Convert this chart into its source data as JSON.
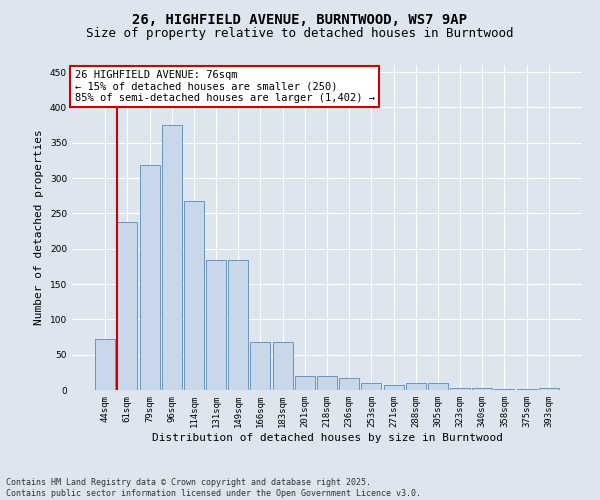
{
  "title_line1": "26, HIGHFIELD AVENUE, BURNTWOOD, WS7 9AP",
  "title_line2": "Size of property relative to detached houses in Burntwood",
  "xlabel": "Distribution of detached houses by size in Burntwood",
  "ylabel": "Number of detached properties",
  "categories": [
    "44sqm",
    "61sqm",
    "79sqm",
    "96sqm",
    "114sqm",
    "131sqm",
    "149sqm",
    "166sqm",
    "183sqm",
    "201sqm",
    "218sqm",
    "236sqm",
    "253sqm",
    "271sqm",
    "288sqm",
    "305sqm",
    "323sqm",
    "340sqm",
    "358sqm",
    "375sqm",
    "393sqm"
  ],
  "values": [
    72,
    238,
    318,
    375,
    268,
    184,
    184,
    68,
    68,
    20,
    20,
    17,
    10,
    7,
    10,
    10,
    3,
    3,
    2,
    2,
    3
  ],
  "bar_color": "#c8d8ea",
  "bar_edge_color": "#5b8ab5",
  "vline_color": "#cc0000",
  "vline_x_index": 1,
  "annotation_text": "26 HIGHFIELD AVENUE: 76sqm\n← 15% of detached houses are smaller (250)\n85% of semi-detached houses are larger (1,402) →",
  "annotation_box_facecolor": "#ffffff",
  "annotation_box_edgecolor": "#cc0000",
  "ylim": [
    0,
    460
  ],
  "yticks": [
    0,
    50,
    100,
    150,
    200,
    250,
    300,
    350,
    400,
    450
  ],
  "background_color": "#dde5ef",
  "plot_bg_color": "#dde5ef",
  "grid_color": "#ffffff",
  "footer_line1": "Contains HM Land Registry data © Crown copyright and database right 2025.",
  "footer_line2": "Contains public sector information licensed under the Open Government Licence v3.0.",
  "title_fontsize": 10,
  "subtitle_fontsize": 9,
  "tick_fontsize": 6.5,
  "label_fontsize": 8,
  "annotation_fontsize": 7.5,
  "footer_fontsize": 6
}
